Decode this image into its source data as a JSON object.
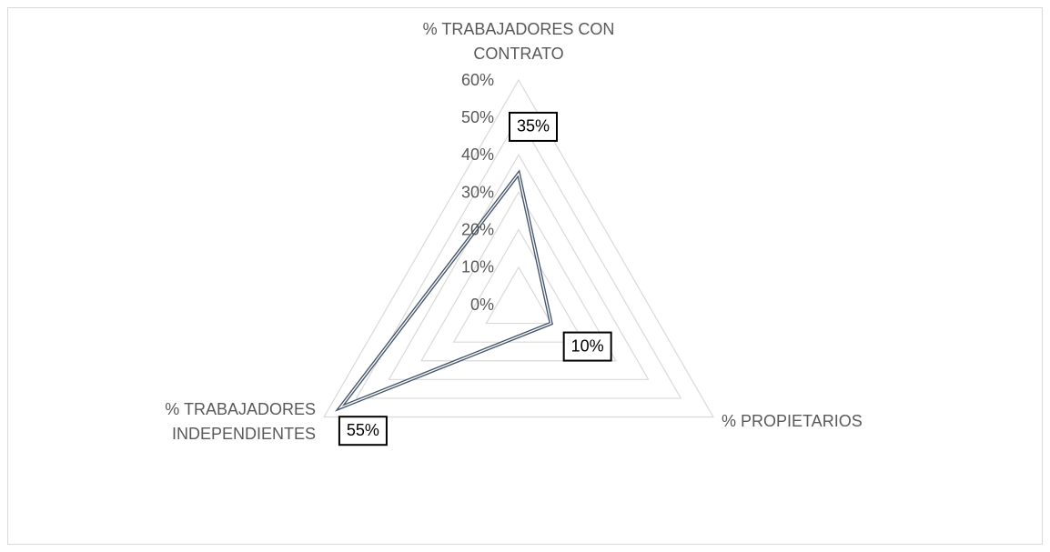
{
  "chart_data": {
    "type": "radar",
    "categories": [
      "% TRABAJADORES CON CONTRATO",
      "% PROPIETARIOS",
      "% TRABAJADORES INDEPENDIENTES"
    ],
    "series": [
      {
        "color": "#44546a",
        "values": [
          35,
          10,
          55
        ],
        "value_labels": [
          "35%",
          "10%",
          "55%"
        ]
      }
    ],
    "ylim": [
      0,
      60
    ],
    "yticks": [
      {
        "value": 0,
        "label": "0%"
      },
      {
        "value": 10,
        "label": "10%"
      },
      {
        "value": 20,
        "label": "20%"
      },
      {
        "value": 30,
        "label": "30%"
      },
      {
        "value": 40,
        "label": "40%"
      },
      {
        "value": 50,
        "label": "50%"
      },
      {
        "value": 60,
        "label": "60%"
      }
    ],
    "grid": true
  }
}
